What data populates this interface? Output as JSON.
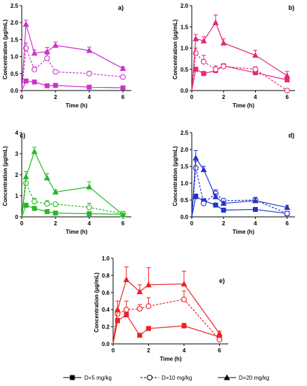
{
  "chart_data": [
    {
      "type": "line",
      "panel_label": "a)",
      "xlabel": "Time (h)",
      "ylabel": "Concentration (µg/mL)",
      "xlim": [
        0,
        6.5
      ],
      "ylim": [
        0,
        2.5
      ],
      "xticks": [
        0,
        2,
        4,
        6
      ],
      "yticks": [
        0.0,
        0.5,
        1.0,
        1.5,
        2.0,
        2.5
      ],
      "ytick_labels": [
        "0.0",
        "0.5",
        "1.0",
        "1.5",
        "2.0",
        "2.5"
      ],
      "color": "#cc33cc",
      "x": [
        0,
        0.25,
        0.75,
        1.5,
        2,
        4,
        6
      ],
      "series": [
        {
          "dose_index": 0,
          "values": [
            0,
            0.28,
            0.25,
            0.14,
            0.15,
            0.1,
            0.08
          ],
          "err": [
            0,
            0.03,
            0.03,
            0.02,
            0.02,
            0.02,
            0.01
          ]
        },
        {
          "dose_index": 1,
          "values": [
            0,
            1.25,
            0.62,
            0.95,
            0.55,
            0.5,
            0.4
          ],
          "err": [
            0,
            0.15,
            0.08,
            0.12,
            0.05,
            0.05,
            0.04
          ]
        },
        {
          "dose_index": 2,
          "values": [
            0,
            1.95,
            1.1,
            1.15,
            1.33,
            1.18,
            0.65
          ],
          "err": [
            0,
            0.12,
            0.1,
            0.12,
            0.1,
            0.1,
            0.05
          ]
        }
      ]
    },
    {
      "type": "line",
      "panel_label": "b)",
      "xlabel": "Time (h)",
      "ylabel": "Concentration (µg/mL)",
      "xlim": [
        0,
        6.5
      ],
      "ylim": [
        0,
        2.0
      ],
      "xticks": [
        0,
        2,
        4,
        6
      ],
      "yticks": [
        0.0,
        0.5,
        1.0,
        1.5,
        2.0
      ],
      "ytick_labels": [
        "0.0",
        "0.5",
        "1.0",
        "1.5",
        "2.0"
      ],
      "color": "#e6267a",
      "x": [
        0,
        0.25,
        0.75,
        1.5,
        2,
        4,
        6
      ],
      "series": [
        {
          "dose_index": 0,
          "values": [
            0,
            0.5,
            0.4,
            0.47,
            0.58,
            0.42,
            0.25
          ],
          "err": [
            0,
            0.05,
            0.05,
            0.05,
            0.05,
            0.05,
            0.04
          ]
        },
        {
          "dose_index": 1,
          "values": [
            0,
            0.88,
            0.68,
            0.5,
            0.57,
            0.5,
            0.0
          ],
          "err": [
            0,
            0.12,
            0.15,
            0.08,
            0.06,
            0.06,
            0.0
          ]
        },
        {
          "dose_index": 2,
          "values": [
            0,
            1.22,
            1.17,
            1.6,
            1.12,
            0.83,
            0.35
          ],
          "err": [
            0,
            0.1,
            0.1,
            0.18,
            0.1,
            0.12,
            0.1
          ]
        }
      ]
    },
    {
      "type": "line",
      "panel_label": "c)",
      "xlabel": "Time (h)",
      "ylabel": "Concentration (µg/mL)",
      "xlim": [
        0,
        6.5
      ],
      "ylim": [
        0,
        4
      ],
      "xticks": [
        0,
        2,
        4,
        6
      ],
      "yticks": [
        0,
        1,
        2,
        3,
        4
      ],
      "ytick_labels": [
        "0",
        "1",
        "2",
        "3",
        "4"
      ],
      "color": "#22bb22",
      "x": [
        0,
        0.25,
        0.75,
        1.5,
        2,
        4,
        6
      ],
      "series": [
        {
          "dose_index": 0,
          "values": [
            0,
            0.55,
            0.4,
            0.25,
            0.18,
            0.15,
            0.12
          ],
          "err": [
            0,
            0.05,
            0.05,
            0.04,
            0.03,
            0.03,
            0.02
          ]
        },
        {
          "dose_index": 1,
          "values": [
            0,
            1.6,
            0.73,
            0.62,
            0.6,
            0.45,
            0.15
          ],
          "err": [
            0,
            0.2,
            0.15,
            0.15,
            0.08,
            0.2,
            0.1
          ]
        },
        {
          "dose_index": 2,
          "values": [
            0,
            1.9,
            3.1,
            1.85,
            1.18,
            1.42,
            0.1
          ],
          "err": [
            0,
            0.25,
            0.2,
            0.2,
            0.1,
            0.25,
            0.05
          ]
        }
      ]
    },
    {
      "type": "line",
      "panel_label": "d)",
      "xlabel": "Time (h)",
      "ylabel": "Concentration (µg/mL)",
      "xlim": [
        0,
        6.5
      ],
      "ylim": [
        0,
        2.5
      ],
      "xticks": [
        0,
        2,
        4,
        6
      ],
      "yticks": [
        0.0,
        0.5,
        1.0,
        1.5,
        2.0,
        2.5
      ],
      "ytick_labels": [
        "0.0",
        "0.5",
        "1.0",
        "1.5",
        "2.0",
        "2.5"
      ],
      "color": "#2233cc",
      "x": [
        0,
        0.25,
        0.75,
        1.5,
        2,
        4,
        6
      ],
      "series": [
        {
          "dose_index": 0,
          "values": [
            0,
            0.6,
            0.48,
            0.35,
            0.2,
            0.22,
            0.1
          ],
          "err": [
            0,
            0.08,
            0.06,
            0.05,
            0.04,
            0.03,
            0.02
          ]
        },
        {
          "dose_index": 1,
          "values": [
            0,
            1.45,
            0.4,
            0.7,
            0.48,
            0.5,
            0.1
          ],
          "err": [
            0,
            0.2,
            0.08,
            0.1,
            0.05,
            0.08,
            0.03
          ]
        },
        {
          "dose_index": 2,
          "values": [
            0,
            1.75,
            1.4,
            0.6,
            0.4,
            0.48,
            0.28
          ],
          "err": [
            0,
            0.22,
            0.1,
            0.08,
            0.06,
            0.08,
            0.06
          ]
        }
      ]
    },
    {
      "type": "line",
      "panel_label": "e)",
      "xlabel": "Time (h)",
      "ylabel": "Concentration (µg/mL)",
      "xlim": [
        0,
        6.5
      ],
      "ylim": [
        0,
        1.0
      ],
      "xticks": [
        0,
        2,
        4,
        6
      ],
      "yticks": [
        0.0,
        0.2,
        0.4,
        0.6,
        0.8,
        1.0
      ],
      "ytick_labels": [
        "0.0",
        "0.2",
        "0.4",
        "0.6",
        "0.8",
        "1.0"
      ],
      "color": "#ee2222",
      "x": [
        0,
        0.25,
        0.75,
        1.5,
        2,
        4,
        6
      ],
      "series": [
        {
          "dose_index": 0,
          "values": [
            0,
            0.27,
            0.34,
            0.1,
            0.18,
            0.21,
            0.08
          ],
          "err": [
            0,
            0.03,
            0.03,
            0.02,
            0.02,
            0.03,
            0.02
          ]
        },
        {
          "dose_index": 1,
          "values": [
            0,
            0.35,
            0.4,
            0.41,
            0.44,
            0.52,
            0.05
          ],
          "err": [
            0,
            0.05,
            0.1,
            0.05,
            0.1,
            0.1,
            0.02
          ]
        },
        {
          "dose_index": 2,
          "values": [
            0,
            0.4,
            0.75,
            0.61,
            0.69,
            0.7,
            0.12
          ],
          "err": [
            0,
            0.1,
            0.15,
            0.08,
            0.2,
            0.15,
            0.03
          ]
        }
      ]
    }
  ],
  "legend": [
    {
      "label": "D=5 mg/kg",
      "marker": "square-filled",
      "line": "solid"
    },
    {
      "label": "D=10 mg/kg",
      "marker": "circle-open",
      "line": "dashed"
    },
    {
      "label": "D=20 mg/kg",
      "marker": "triangle-filled",
      "line": "solid"
    }
  ]
}
